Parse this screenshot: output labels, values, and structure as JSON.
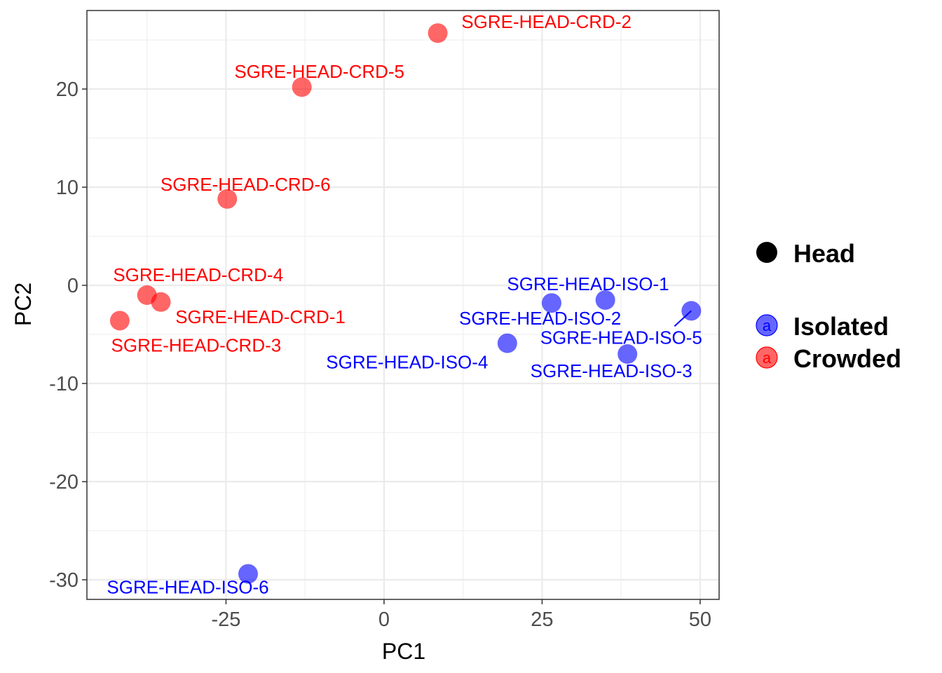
{
  "chart_data": {
    "type": "scatter",
    "title": "",
    "xlabel": "PC1",
    "ylabel": "PC2",
    "xlim": [
      -47,
      53
    ],
    "ylim": [
      -32,
      28
    ],
    "xticks": [
      -25,
      0,
      25,
      50
    ],
    "xtick_labels": [
      "-25",
      "0",
      "25",
      "50"
    ],
    "yticks": [
      -30,
      -20,
      -10,
      0,
      10,
      20
    ],
    "ytick_labels": [
      "-30",
      "-20",
      "-10",
      "0",
      "10",
      "20"
    ],
    "grid": true,
    "legend_position": "right",
    "shape_legend": {
      "label": "Head",
      "color": "#666666"
    },
    "series": [
      {
        "name": "Isolated",
        "color": "#0000ff",
        "points": [
          {
            "label": "SGRE-HEAD-ISO-1",
            "x": 26.5,
            "y": -1.8
          },
          {
            "label": "SGRE-HEAD-ISO-2",
            "x": 35.0,
            "y": -1.5
          },
          {
            "label": "SGRE-HEAD-ISO-3",
            "x": 38.5,
            "y": -7.0
          },
          {
            "label": "SGRE-HEAD-ISO-4",
            "x": 19.5,
            "y": -5.9
          },
          {
            "label": "SGRE-HEAD-ISO-5",
            "x": 48.6,
            "y": -2.6
          },
          {
            "label": "SGRE-HEAD-ISO-6",
            "x": -21.5,
            "y": -29.4
          }
        ]
      },
      {
        "name": "Crowded",
        "color": "#ff0000",
        "points": [
          {
            "label": "SGRE-HEAD-CRD-1",
            "x": -35.3,
            "y": -1.7
          },
          {
            "label": "SGRE-HEAD-CRD-2",
            "x": 8.5,
            "y": 25.7
          },
          {
            "label": "SGRE-HEAD-CRD-3",
            "x": -41.8,
            "y": -3.6
          },
          {
            "label": "SGRE-HEAD-CRD-4",
            "x": -37.5,
            "y": -1.0
          },
          {
            "label": "SGRE-HEAD-CRD-5",
            "x": -13.0,
            "y": 20.2
          },
          {
            "label": "SGRE-HEAD-CRD-6",
            "x": -24.8,
            "y": 8.8
          }
        ]
      }
    ]
  }
}
